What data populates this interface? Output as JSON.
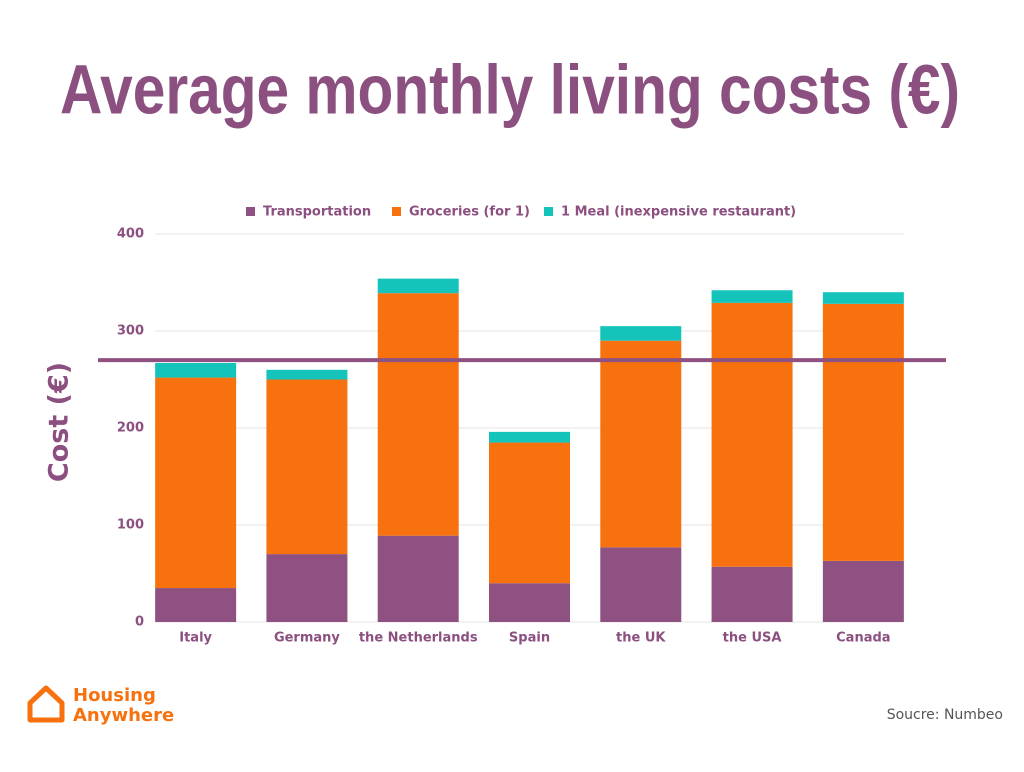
{
  "chart_data": {
    "type": "stacked_bar",
    "title": "Average monthly living costs (€)",
    "y_label": "Cost (€)",
    "categories": [
      "Italy",
      "Germany",
      "the Netherlands",
      "Spain",
      "the UK",
      "the USA",
      "Canada"
    ],
    "series": [
      {
        "name": "Transportation",
        "color": "#8e5181",
        "values": [
          35,
          70,
          89,
          40,
          77,
          57,
          63
        ]
      },
      {
        "name": "Groceries (for 1)",
        "color": "#f7720f",
        "values": [
          217,
          180,
          250,
          145,
          213,
          272,
          265
        ]
      },
      {
        "name": "1 Meal (inexpensive restaurant)",
        "color": "#14c4ba",
        "values": [
          15,
          10,
          15,
          11,
          15,
          13,
          12
        ]
      }
    ],
    "reference_line": {
      "value": 270,
      "color": "#8e5181"
    },
    "ylim": [
      0,
      400
    ],
    "yticks": [
      0,
      100,
      200,
      300,
      400
    ],
    "grid": true,
    "legend": "top",
    "source": "Soucre: Numbeo",
    "logo": [
      "Housing",
      "Anywhere"
    ]
  }
}
